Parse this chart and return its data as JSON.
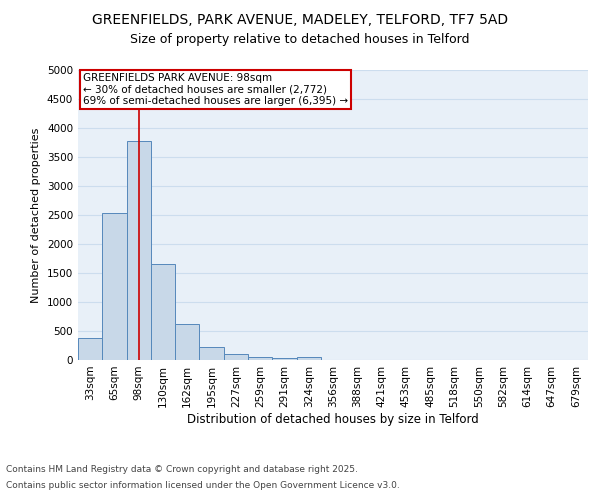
{
  "title1": "GREENFIELDS, PARK AVENUE, MADELEY, TELFORD, TF7 5AD",
  "title2": "Size of property relative to detached houses in Telford",
  "xlabel": "Distribution of detached houses by size in Telford",
  "ylabel": "Number of detached properties",
  "categories": [
    "33sqm",
    "65sqm",
    "98sqm",
    "130sqm",
    "162sqm",
    "195sqm",
    "227sqm",
    "259sqm",
    "291sqm",
    "324sqm",
    "356sqm",
    "388sqm",
    "421sqm",
    "453sqm",
    "485sqm",
    "518sqm",
    "550sqm",
    "582sqm",
    "614sqm",
    "647sqm",
    "679sqm"
  ],
  "values": [
    380,
    2530,
    3780,
    1660,
    620,
    230,
    105,
    45,
    30,
    50,
    5,
    0,
    0,
    0,
    0,
    0,
    0,
    0,
    0,
    0,
    0
  ],
  "bar_color": "#c8d8e8",
  "bar_edge_color": "#5588bb",
  "red_line_index": 2,
  "annotation_text": "GREENFIELDS PARK AVENUE: 98sqm\n← 30% of detached houses are smaller (2,772)\n69% of semi-detached houses are larger (6,395) →",
  "annotation_box_color": "#ffffff",
  "annotation_box_edge": "#cc0000",
  "red_line_color": "#cc0000",
  "ylim": [
    0,
    5000
  ],
  "yticks": [
    0,
    500,
    1000,
    1500,
    2000,
    2500,
    3000,
    3500,
    4000,
    4500,
    5000
  ],
  "grid_color": "#ccddee",
  "background_color": "#e8f0f8",
  "footer1": "Contains HM Land Registry data © Crown copyright and database right 2025.",
  "footer2": "Contains public sector information licensed under the Open Government Licence v3.0.",
  "title1_fontsize": 10,
  "title2_fontsize": 9,
  "xlabel_fontsize": 8.5,
  "ylabel_fontsize": 8,
  "tick_fontsize": 7.5,
  "annotation_fontsize": 7.5,
  "footer_fontsize": 6.5
}
